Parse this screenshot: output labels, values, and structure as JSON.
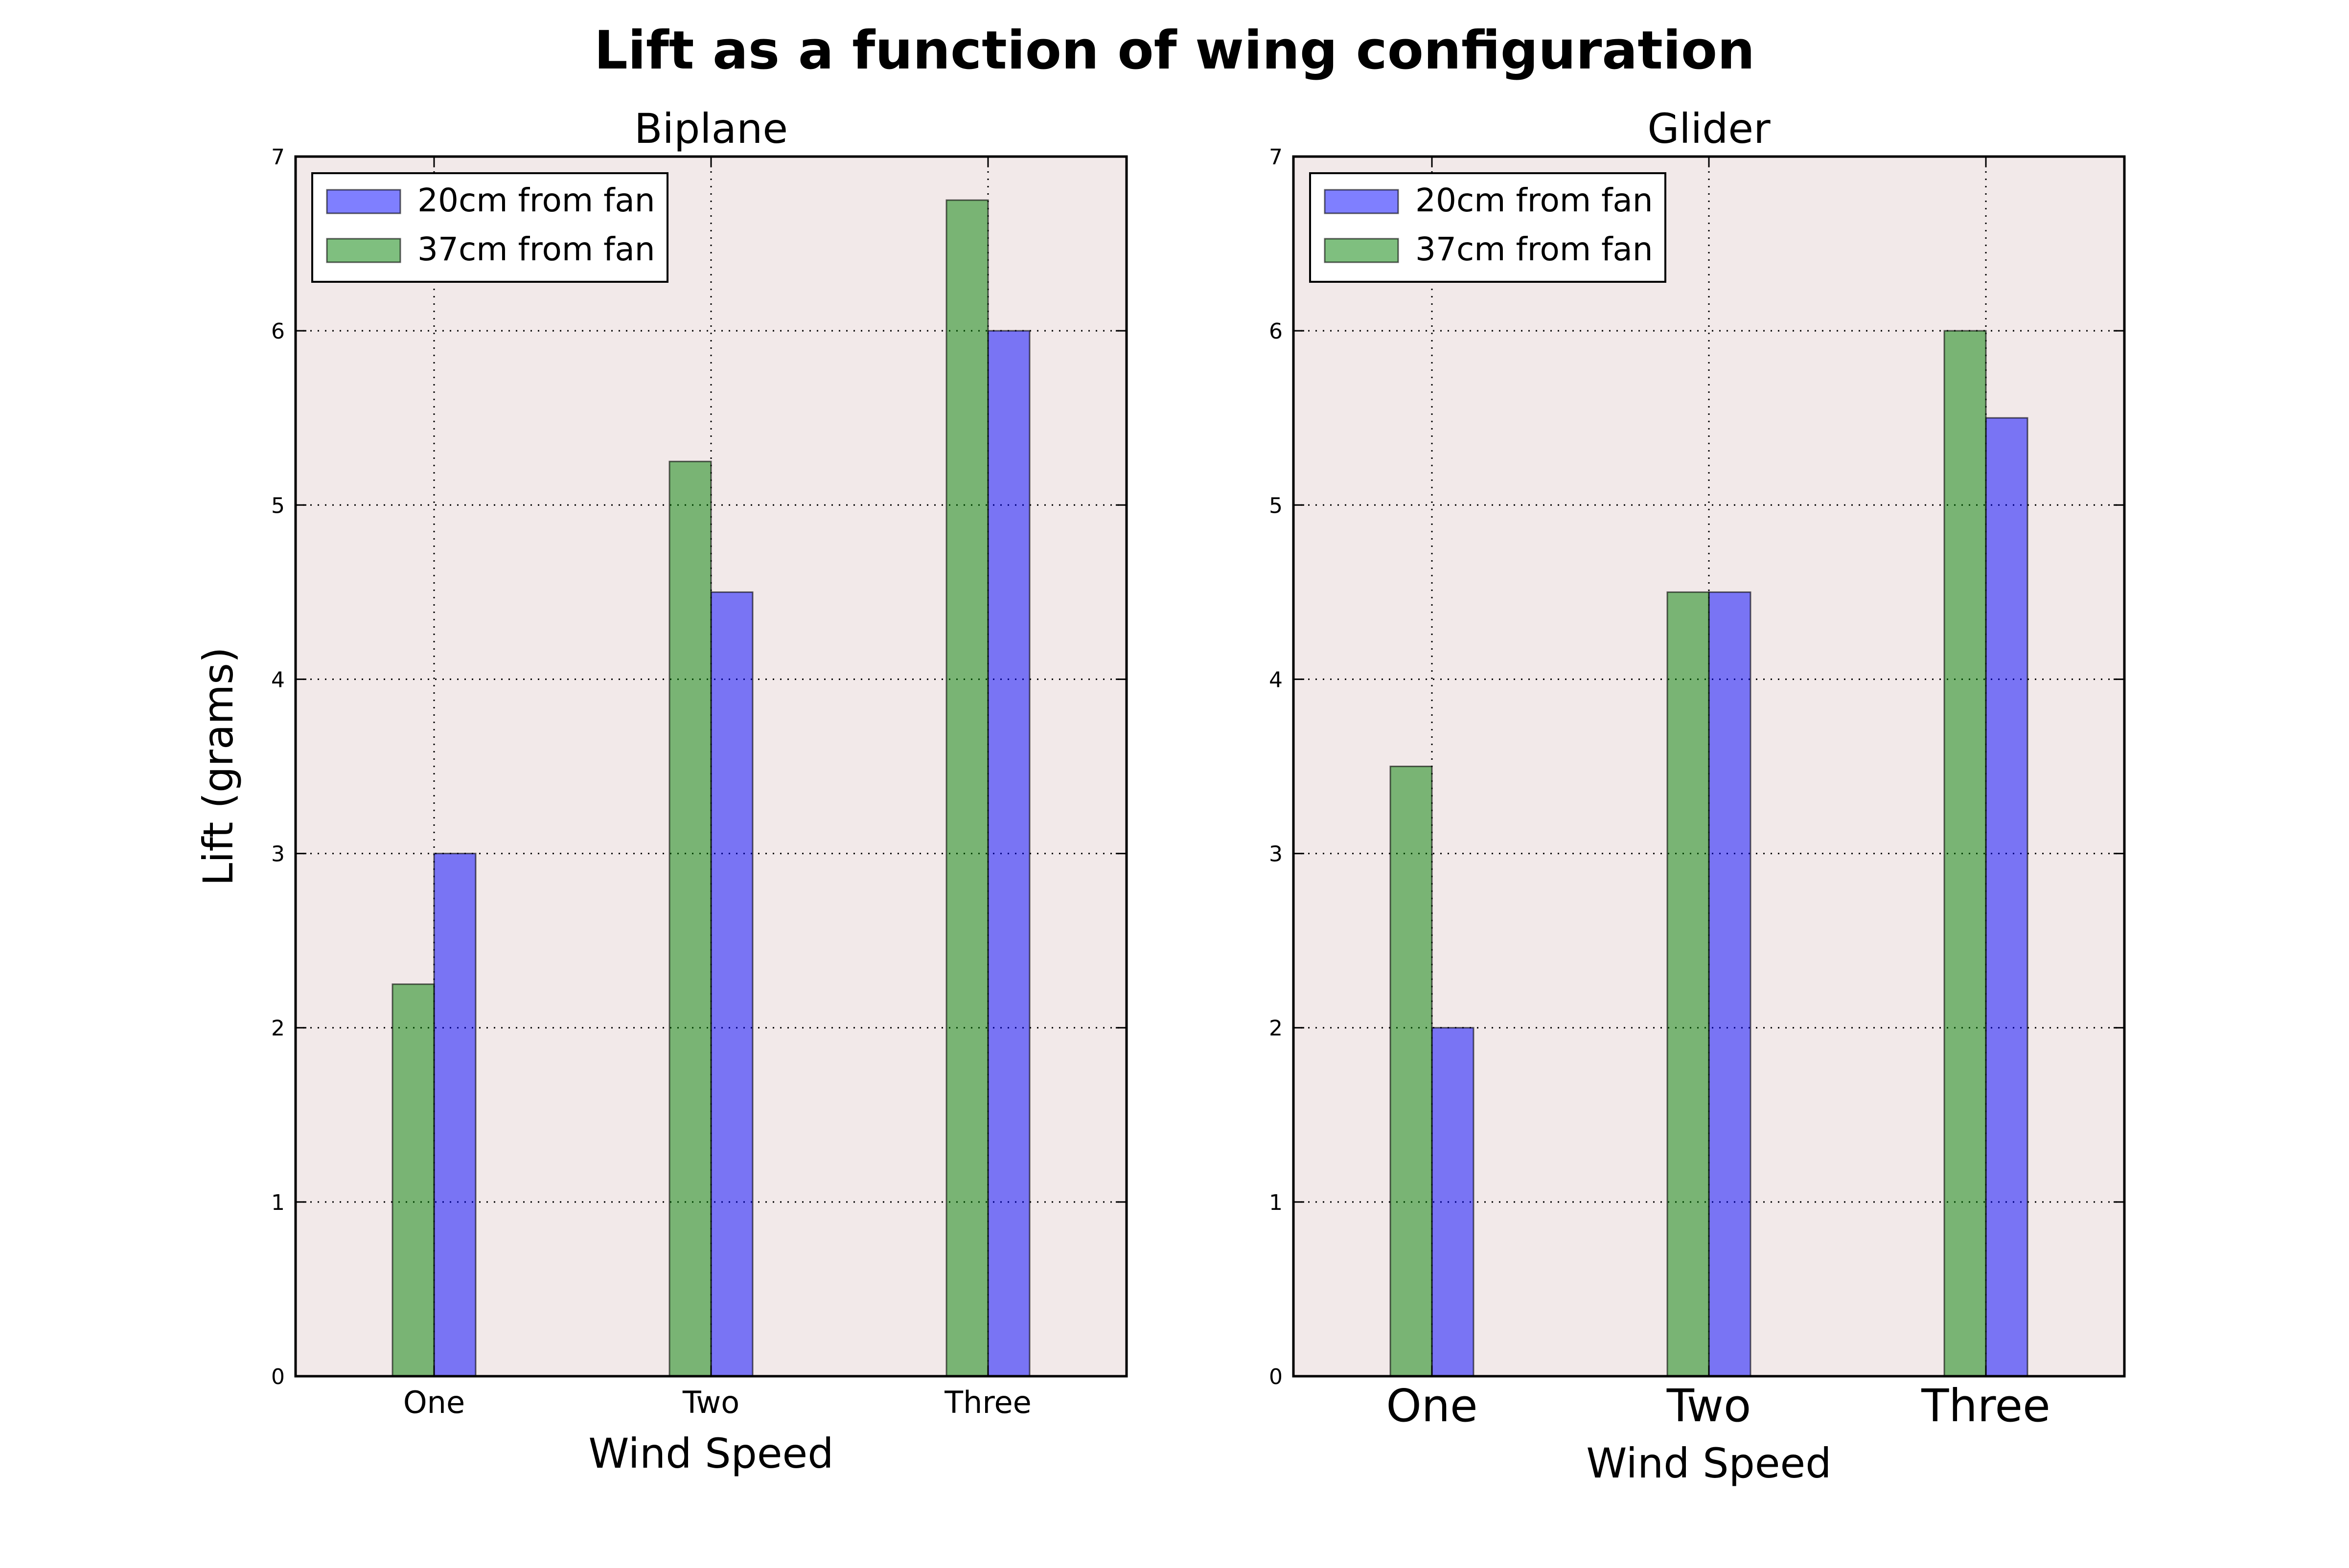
{
  "colors": {
    "series_20cm": "#0000ff",
    "series_37cm": "#008000",
    "axes_background": "#f2e9e9",
    "bar_alpha": 0.5
  },
  "chart_data": {
    "title": "Lift as a function of wing configuration",
    "type": "bar",
    "subplots": [
      {
        "title": "Biplane",
        "type": "bar",
        "categories": [
          "One",
          "Two",
          "Three"
        ],
        "xlabel": "Wind Speed",
        "ylabel": "Lift (grams)",
        "ylim": [
          0,
          7
        ],
        "yticks": [
          0,
          1,
          2,
          3,
          4,
          5,
          6,
          7
        ],
        "grid": true,
        "legend_position": "upper-left",
        "series": [
          {
            "name": "20cm from fan",
            "color": "#0000ff",
            "values": [
              3.0,
              4.5,
              6.0
            ]
          },
          {
            "name": "37cm from fan",
            "color": "#008000",
            "values": [
              2.25,
              5.25,
              6.75
            ]
          }
        ]
      },
      {
        "title": "Glider",
        "type": "bar",
        "categories": [
          "One",
          "Two",
          "Three"
        ],
        "xlabel": "Wind Speed",
        "ylabel": "",
        "ylim": [
          0,
          7
        ],
        "yticks": [
          0,
          1,
          2,
          3,
          4,
          5,
          6,
          7
        ],
        "grid": true,
        "legend_position": "upper-left",
        "series": [
          {
            "name": "20cm from fan",
            "color": "#0000ff",
            "values": [
              2.0,
              4.5,
              5.5
            ]
          },
          {
            "name": "37cm from fan",
            "color": "#008000",
            "values": [
              3.5,
              4.5,
              6.0
            ]
          }
        ]
      }
    ]
  }
}
